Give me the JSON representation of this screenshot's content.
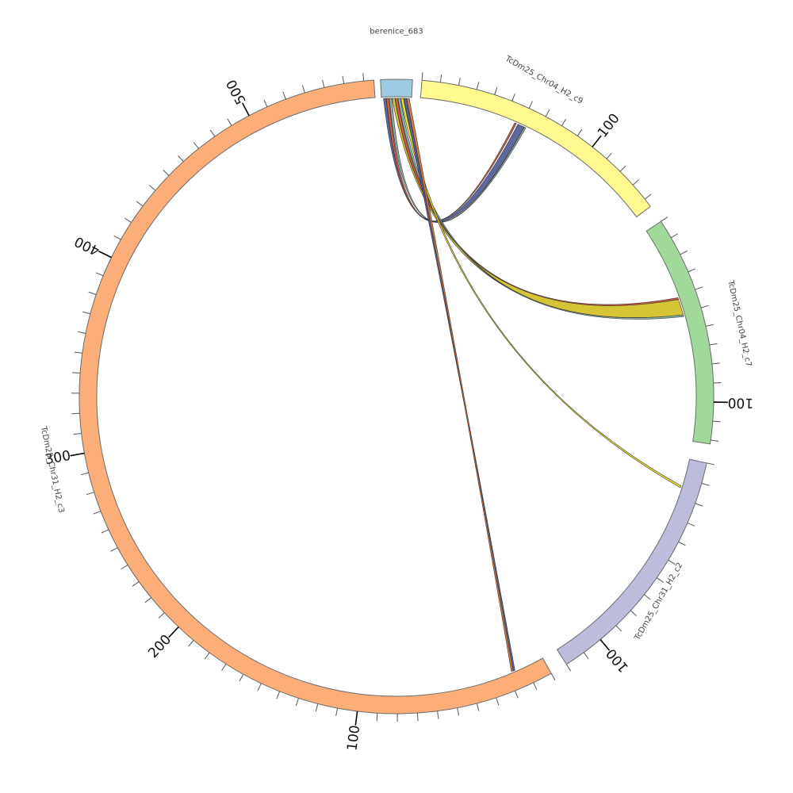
{
  "segments": [
    {
      "id": "berenice",
      "label": "berenice_683",
      "color": "#9ecae1",
      "length": 4,
      "tick_labels": []
    },
    {
      "id": "c9",
      "label": "TcDm25_Chr04_H2_c9",
      "color": "#fff98f",
      "length": 145,
      "tick_labels": [
        {
          "value": 100,
          "text": "100"
        }
      ]
    },
    {
      "id": "c7",
      "label": "TcDm25_Chr04_H2_c7",
      "color": "#a1d99b",
      "length": 122,
      "tick_labels": [
        {
          "value": 100,
          "text": "100"
        }
      ]
    },
    {
      "id": "c2",
      "label": "TcDm25_Chr31_H2_c2",
      "color": "#bcbddc",
      "length": 120,
      "tick_labels": [
        {
          "value": 100,
          "text": "100"
        }
      ]
    },
    {
      "id": "c3",
      "label": "TcDm25_Chr31_H2_c3",
      "color": "#fdae78",
      "length": 565,
      "tick_labels": [
        {
          "value": 100,
          "text": "100"
        },
        {
          "value": 200,
          "text": "200"
        },
        {
          "value": 300,
          "text": "300"
        },
        {
          "value": 400,
          "text": "400"
        },
        {
          "value": 500,
          "text": "500"
        }
      ]
    }
  ],
  "links": [
    {
      "source": "berenice",
      "target": "c9",
      "t_from": 58,
      "t_to": 62,
      "color": "#56619a"
    },
    {
      "source": "berenice",
      "target": "c9",
      "t_from": 56,
      "t_to": 57,
      "color": "#c9553b"
    },
    {
      "source": "berenice",
      "target": "c9",
      "t_from": 62,
      "t_to": 63,
      "color": "#86a59a"
    },
    {
      "source": "berenice",
      "target": "c7",
      "t_from": 42,
      "t_to": 51,
      "color": "#d4c12c"
    },
    {
      "source": "berenice",
      "target": "c7",
      "t_from": 41,
      "t_to": 42,
      "color": "#d9533a"
    },
    {
      "source": "berenice",
      "target": "c7",
      "t_from": 51,
      "t_to": 52,
      "color": "#7fb0a8"
    },
    {
      "source": "berenice",
      "target": "c2",
      "t_from": 14,
      "t_to": 15,
      "color": "#e8dc2a"
    },
    {
      "source": "berenice",
      "target": "c3",
      "t_from": 16,
      "t_to": 17,
      "color": "#4f5b8f"
    },
    {
      "source": "berenice",
      "target": "c3",
      "t_from": 17,
      "t_to": 18,
      "color": "#d9733a"
    }
  ]
}
